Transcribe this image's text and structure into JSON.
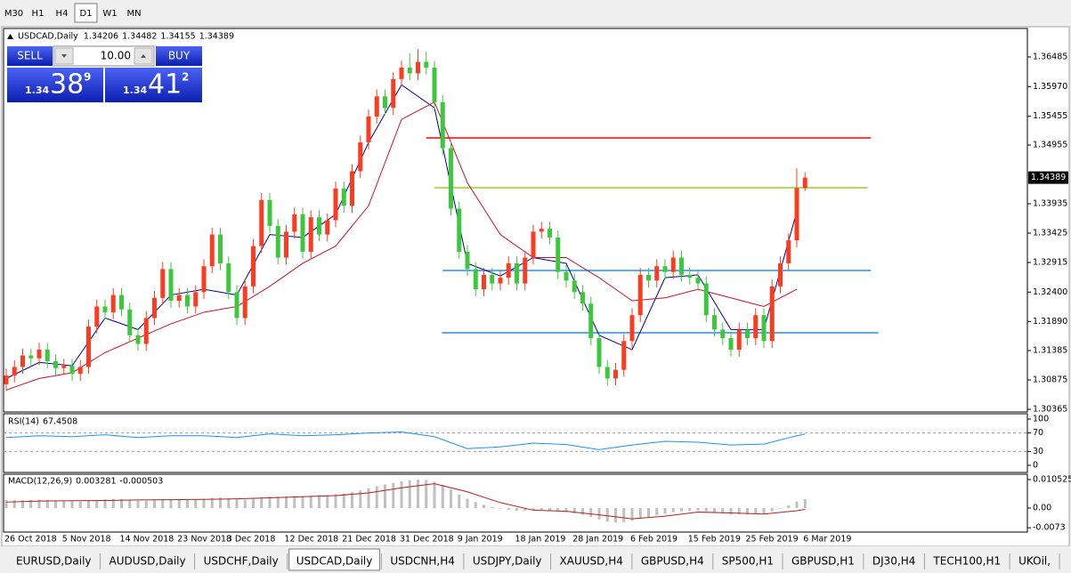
{
  "toolbar": {
    "timeframes": [
      "M30",
      "H1",
      "H4",
      "D1",
      "W1",
      "MN"
    ],
    "active": "D1"
  },
  "trade_panel": {
    "sell": "SELL",
    "buy": "BUY",
    "lots": "10.00",
    "bid": {
      "big": "1.34",
      "pips": "38",
      "point": "9"
    },
    "ask": {
      "big": "1.34",
      "pips": "41",
      "point": "2"
    }
  },
  "tabs": {
    "items": [
      "EURUSD,Daily",
      "AUDUSD,Daily",
      "USDCHF,Daily",
      "USDCAD,Daily",
      "USDCNH,H4",
      "USDJPY,Daily",
      "XAUUSD,H4",
      "GBPUSD,H4",
      "SP500,H1",
      "GBPUSD,H1",
      "DJ30,H4",
      "TECH100,H1",
      "UKOil,"
    ],
    "active": "USDCAD,Daily"
  },
  "chart_data": [
    {
      "type": "candlestick",
      "title": "USDCAD,Daily",
      "categories": [
        "26 Oct 2018",
        null,
        null,
        null,
        null,
        null,
        null,
        "5 Nov 2018",
        null,
        null,
        null,
        null,
        null,
        null,
        "14 Nov 2018",
        null,
        null,
        null,
        null,
        null,
        null,
        "23 Nov 2018",
        null,
        null,
        null,
        null,
        null,
        "3 Dec 2018",
        null,
        null,
        null,
        null,
        null,
        null,
        "12 Dec 2018",
        null,
        null,
        null,
        null,
        null,
        null,
        "21 Dec 2018",
        null,
        null,
        null,
        null,
        null,
        null,
        "31 Dec 2018",
        null,
        null,
        null,
        null,
        null,
        null,
        "9 Jan 2019",
        null,
        null,
        null,
        null,
        null,
        null,
        "18 Jan 2019",
        null,
        null,
        null,
        null,
        null,
        null,
        "28 Jan 2019",
        null,
        null,
        null,
        null,
        null,
        null,
        "6 Feb 2019",
        null,
        null,
        null,
        null,
        null,
        null,
        "15 Feb 2019",
        null,
        null,
        null,
        null,
        null,
        null,
        "25 Feb 2019",
        null,
        null,
        null,
        null,
        null,
        null,
        "6 Mar 2019"
      ],
      "open": [
        1.308,
        1.3095,
        1.311,
        1.313,
        1.3125,
        1.314,
        1.312,
        1.3108,
        1.3112,
        1.3098,
        1.311,
        1.318,
        1.3215,
        1.3205,
        1.3235,
        1.321,
        1.3165,
        1.315,
        1.3195,
        1.323,
        1.328,
        1.3225,
        1.3235,
        1.3215,
        1.324,
        1.3285,
        1.334,
        1.329,
        1.324,
        1.3195,
        1.325,
        1.332,
        1.34,
        1.3355,
        1.33,
        1.3345,
        1.3375,
        1.331,
        1.337,
        1.334,
        1.3365,
        1.342,
        1.339,
        1.345,
        1.35,
        1.3545,
        1.358,
        1.356,
        1.361,
        1.363,
        1.362,
        1.364,
        1.363,
        1.357,
        1.349,
        1.3385,
        1.331,
        1.328,
        1.3245,
        1.327,
        1.3255,
        1.3265,
        1.329,
        1.3255,
        1.33,
        1.3345,
        1.335,
        1.3335,
        1.3275,
        1.326,
        1.324,
        1.322,
        1.316,
        1.311,
        1.309,
        1.3105,
        1.3155,
        1.32,
        1.327,
        1.326,
        1.3285,
        1.3275,
        1.33,
        1.327,
        1.3265,
        1.3255,
        1.32,
        1.3175,
        1.316,
        1.314,
        1.3175,
        1.316,
        1.32,
        1.3155,
        1.325,
        1.329,
        1.333,
        1.34206
      ],
      "high": [
        1.3107,
        1.3122,
        1.3142,
        1.3142,
        1.3152,
        1.3152,
        1.3132,
        1.3124,
        1.3124,
        1.3122,
        1.3192,
        1.3227,
        1.3227,
        1.3247,
        1.3247,
        1.3222,
        1.3177,
        1.3207,
        1.3242,
        1.3292,
        1.3292,
        1.3247,
        1.3247,
        1.3252,
        1.3297,
        1.3352,
        1.3352,
        1.3302,
        1.3252,
        1.3262,
        1.3332,
        1.3412,
        1.3412,
        1.3367,
        1.3357,
        1.3387,
        1.3387,
        1.3382,
        1.3382,
        1.3377,
        1.3432,
        1.3432,
        1.3462,
        1.3512,
        1.3557,
        1.3592,
        1.3592,
        1.3622,
        1.3642,
        1.3655,
        1.3662,
        1.3658,
        1.3642,
        1.3582,
        1.3502,
        1.3397,
        1.3322,
        1.3292,
        1.3282,
        1.3282,
        1.3277,
        1.3302,
        1.3302,
        1.3312,
        1.3357,
        1.3362,
        1.3362,
        1.3347,
        1.3287,
        1.3272,
        1.3252,
        1.3232,
        1.3172,
        1.3122,
        1.3117,
        1.3167,
        1.3212,
        1.3282,
        1.3282,
        1.3297,
        1.3297,
        1.3312,
        1.3312,
        1.3282,
        1.3277,
        1.3267,
        1.3212,
        1.3187,
        1.3172,
        1.3187,
        1.3187,
        1.3212,
        1.3212,
        1.3262,
        1.3302,
        1.3342,
        1.3455,
        1.34482
      ],
      "low": [
        1.3068,
        1.3083,
        1.3098,
        1.3113,
        1.3113,
        1.3108,
        1.3096,
        1.3096,
        1.3086,
        1.3086,
        1.3098,
        1.3168,
        1.3193,
        1.3193,
        1.3198,
        1.3153,
        1.3138,
        1.3138,
        1.3183,
        1.3218,
        1.3213,
        1.3213,
        1.3203,
        1.3203,
        1.3228,
        1.3273,
        1.3278,
        1.3228,
        1.3183,
        1.3183,
        1.3238,
        1.3308,
        1.3343,
        1.3288,
        1.3288,
        1.3333,
        1.3298,
        1.3298,
        1.3328,
        1.3328,
        1.3353,
        1.3378,
        1.3378,
        1.3438,
        1.3488,
        1.3533,
        1.3548,
        1.3548,
        1.3598,
        1.3608,
        1.3608,
        1.3618,
        1.3558,
        1.3478,
        1.3373,
        1.3298,
        1.3268,
        1.3233,
        1.3233,
        1.3243,
        1.3243,
        1.3253,
        1.3243,
        1.3243,
        1.3288,
        1.3333,
        1.3323,
        1.3263,
        1.3248,
        1.3228,
        1.3208,
        1.3148,
        1.3098,
        1.3078,
        1.3078,
        1.3093,
        1.3143,
        1.3188,
        1.3248,
        1.3248,
        1.3263,
        1.3263,
        1.3258,
        1.3253,
        1.3243,
        1.3188,
        1.3163,
        1.3148,
        1.3128,
        1.3128,
        1.3148,
        1.3148,
        1.3143,
        1.3143,
        1.3238,
        1.3278,
        1.3318,
        1.34155
      ],
      "close": [
        1.3095,
        1.311,
        1.313,
        1.3125,
        1.314,
        1.312,
        1.3108,
        1.3112,
        1.3098,
        1.311,
        1.318,
        1.3215,
        1.3205,
        1.3235,
        1.321,
        1.3165,
        1.315,
        1.3195,
        1.323,
        1.328,
        1.3225,
        1.3235,
        1.3215,
        1.324,
        1.3285,
        1.334,
        1.329,
        1.324,
        1.3195,
        1.325,
        1.332,
        1.34,
        1.3355,
        1.33,
        1.3345,
        1.3375,
        1.331,
        1.337,
        1.334,
        1.3365,
        1.342,
        1.339,
        1.345,
        1.35,
        1.3545,
        1.358,
        1.356,
        1.361,
        1.363,
        1.362,
        1.364,
        1.363,
        1.357,
        1.349,
        1.3385,
        1.331,
        1.328,
        1.3245,
        1.327,
        1.3255,
        1.3265,
        1.329,
        1.3255,
        1.33,
        1.3345,
        1.335,
        1.3335,
        1.3275,
        1.326,
        1.324,
        1.322,
        1.316,
        1.311,
        1.309,
        1.3105,
        1.3155,
        1.32,
        1.327,
        1.326,
        1.3285,
        1.3275,
        1.33,
        1.327,
        1.3265,
        1.3255,
        1.32,
        1.3175,
        1.316,
        1.314,
        1.3175,
        1.316,
        1.32,
        1.3155,
        1.325,
        1.329,
        1.333,
        1.34206,
        1.34389
      ],
      "up_color": "#ff3b1f",
      "down_color": "#3cc83c",
      "ylim": [
        1.30334,
        1.36964
      ],
      "yticks": [
        1.36485,
        {
          "value": 1.3597,
          "label": "1.35970"
        },
        1.35455,
        1.34955,
        1.33935,
        1.33425,
        1.32915,
        {
          "value": 1.324,
          "label": "1.32400"
        },
        {
          "value": 1.3189,
          "label": "1.31890"
        },
        1.31385,
        1.30875,
        1.30365
      ],
      "moving_averages": [
        {
          "color": "#00008b",
          "x": [
            0,
            4,
            8,
            12,
            16,
            20,
            24,
            28,
            32,
            36,
            40,
            44,
            48,
            52,
            56,
            60,
            64,
            68,
            72,
            76,
            80,
            84,
            88,
            92,
            96
          ],
          "values": [
            1.309,
            1.3118,
            1.3112,
            1.3195,
            1.3175,
            1.3235,
            1.3245,
            1.3235,
            1.334,
            1.3335,
            1.3375,
            1.35,
            1.36,
            1.356,
            1.329,
            1.3268,
            1.33,
            1.329,
            1.3165,
            1.314,
            1.3265,
            1.327,
            1.3175,
            1.3175,
            1.338
          ]
        },
        {
          "color": "#c8102e",
          "x": [
            0,
            4,
            8,
            12,
            16,
            20,
            24,
            28,
            32,
            36,
            40,
            44,
            48,
            52,
            56,
            60,
            64,
            68,
            72,
            76,
            80,
            84,
            88,
            92,
            96
          ],
          "values": [
            1.307,
            1.309,
            1.31,
            1.3135,
            1.316,
            1.3185,
            1.3205,
            1.3215,
            1.325,
            1.329,
            1.332,
            1.339,
            1.354,
            1.357,
            1.343,
            1.334,
            1.33,
            1.33,
            1.3265,
            1.3225,
            1.323,
            1.3245,
            1.323,
            1.3215,
            1.3245
          ]
        }
      ],
      "levels": [
        {
          "color": "#ff0000",
          "value": 1.35078,
          "x": [
            51,
            105
          ]
        },
        {
          "color": "#9acd32",
          "value": 1.34213,
          "x": [
            52,
            104.6
          ]
        },
        {
          "color": "#1e90ff",
          "value": 1.32775,
          "x": [
            53,
            105
          ]
        },
        {
          "color": "#1e90ff",
          "value": 1.31694,
          "x": [
            52.9,
            105.9
          ]
        }
      ]
    },
    {
      "type": "line",
      "title": "RSI(14)",
      "ylim": [
        0,
        100
      ],
      "yticks": [
        0,
        30,
        70,
        100
      ],
      "series": [
        {
          "color": "#1e90ff",
          "x": [
            0,
            4,
            8,
            12,
            16,
            20,
            24,
            28,
            32,
            36,
            40,
            44,
            48,
            52,
            56,
            60,
            64,
            68,
            72,
            76,
            80,
            84,
            88,
            92,
            96,
            97
          ],
          "values": [
            60,
            64,
            62,
            66,
            60,
            64,
            64,
            60,
            68,
            64,
            66,
            70,
            72,
            62,
            36,
            40,
            48,
            45,
            34,
            44,
            52,
            50,
            44,
            46,
            64,
            67.4508
          ]
        }
      ]
    },
    {
      "type": "bar",
      "title": "MACD(12,26,9)",
      "ylim": [
        -0.00855,
        0.01184
      ],
      "yticks": [
        0.010525,
        {
          "value": 0,
          "label": "0.00"
        },
        -0.0073
      ],
      "series": [
        {
          "type": "bar",
          "color": "#c0c0c0",
          "values": [
            0.003,
            0.0029,
            0.0029,
            0.003,
            0.0031,
            0.003,
            0.0028,
            0.0027,
            0.0025,
            0.0024,
            0.0027,
            0.003,
            0.0032,
            0.0034,
            0.0033,
            0.003,
            0.0027,
            0.0027,
            0.0029,
            0.0033,
            0.0033,
            0.0033,
            0.0032,
            0.0032,
            0.0034,
            0.0038,
            0.0039,
            0.0036,
            0.0032,
            0.0031,
            0.0034,
            0.004,
            0.0043,
            0.0042,
            0.0043,
            0.0045,
            0.0044,
            0.0046,
            0.0047,
            0.0048,
            0.0052,
            0.0054,
            0.0058,
            0.0065,
            0.0073,
            0.0081,
            0.0087,
            0.0093,
            0.0099,
            0.0102,
            0.0105,
            0.0104,
            0.0097,
            0.0085,
            0.0068,
            0.005,
            0.0035,
            0.0022,
            0.0012,
            0.0004,
            -0.0002,
            -0.0006,
            -0.001,
            -0.001,
            -0.0008,
            -0.0007,
            -0.0008,
            -0.0012,
            -0.0016,
            -0.002,
            -0.0025,
            -0.0033,
            -0.0042,
            -0.005,
            -0.0054,
            -0.0052,
            -0.0047,
            -0.0038,
            -0.0033,
            -0.0026,
            -0.0021,
            -0.0015,
            -0.0012,
            -0.001,
            -0.0009,
            -0.0012,
            -0.0017,
            -0.002,
            -0.0024,
            -0.0024,
            -0.0023,
            -0.0021,
            -0.0022,
            -0.0012,
            -0.0002,
            0.001,
            0.0024,
            0.003281
          ]
        },
        {
          "type": "line",
          "color": "#b22222",
          "x": [
            0,
            4,
            8,
            12,
            16,
            20,
            24,
            28,
            32,
            36,
            40,
            44,
            48,
            52,
            56,
            60,
            64,
            68,
            72,
            76,
            80,
            84,
            88,
            92,
            96,
            97
          ],
          "values": [
            0.0022,
            0.0026,
            0.0027,
            0.0028,
            0.003,
            0.0031,
            0.0032,
            0.0034,
            0.0038,
            0.0042,
            0.0046,
            0.0056,
            0.0075,
            0.009,
            0.006,
            0.002,
            -0.0008,
            -0.0012,
            -0.0025,
            -0.004,
            -0.003,
            -0.0015,
            -0.0018,
            -0.0022,
            -0.001,
            -0.000503
          ]
        }
      ]
    }
  ]
}
